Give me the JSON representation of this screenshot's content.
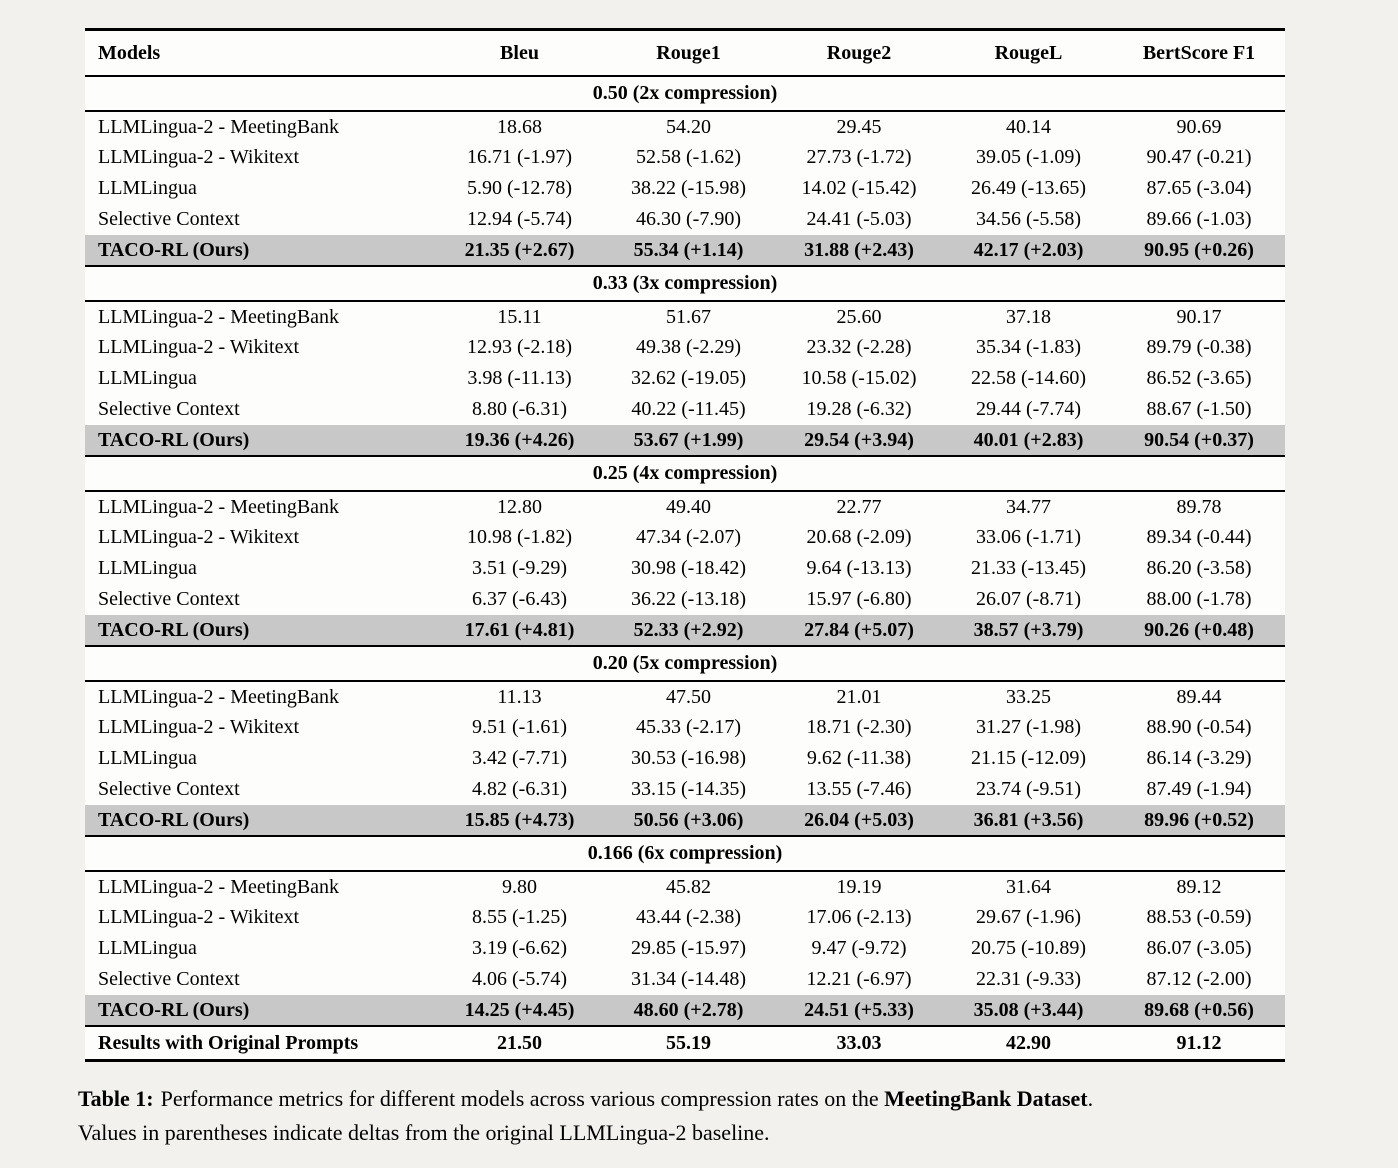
{
  "table": {
    "columns": [
      "Models",
      "Bleu",
      "Rouge1",
      "Rouge2",
      "RougeL",
      "BertScore F1"
    ],
    "sections": [
      {
        "title": "0.50 (2x compression)",
        "rows": [
          {
            "model": "LLMLingua-2 - MeetingBank",
            "values": [
              "18.68",
              "54.20",
              "29.45",
              "40.14",
              "90.69"
            ],
            "highlight": false
          },
          {
            "model": "LLMLingua-2 - Wikitext",
            "values": [
              "16.71 (-1.97)",
              "52.58 (-1.62)",
              "27.73 (-1.72)",
              "39.05 (-1.09)",
              "90.47 (-0.21)"
            ],
            "highlight": false
          },
          {
            "model": "LLMLingua",
            "values": [
              "5.90 (-12.78)",
              "38.22 (-15.98)",
              "14.02 (-15.42)",
              "26.49 (-13.65)",
              "87.65 (-3.04)"
            ],
            "highlight": false
          },
          {
            "model": "Selective Context",
            "values": [
              "12.94 (-5.74)",
              "46.30 (-7.90)",
              "24.41 (-5.03)",
              "34.56 (-5.58)",
              "89.66 (-1.03)"
            ],
            "highlight": false
          },
          {
            "model": "TACO-RL (Ours)",
            "values": [
              "21.35 (+2.67)",
              "55.34 (+1.14)",
              "31.88 (+2.43)",
              "42.17 (+2.03)",
              "90.95 (+0.26)"
            ],
            "highlight": true
          }
        ]
      },
      {
        "title": "0.33 (3x compression)",
        "rows": [
          {
            "model": "LLMLingua-2 - MeetingBank",
            "values": [
              "15.11",
              "51.67",
              "25.60",
              "37.18",
              "90.17"
            ],
            "highlight": false
          },
          {
            "model": "LLMLingua-2 - Wikitext",
            "values": [
              "12.93 (-2.18)",
              "49.38 (-2.29)",
              "23.32 (-2.28)",
              "35.34 (-1.83)",
              "89.79 (-0.38)"
            ],
            "highlight": false
          },
          {
            "model": "LLMLingua",
            "values": [
              "3.98 (-11.13)",
              "32.62 (-19.05)",
              "10.58 (-15.02)",
              "22.58 (-14.60)",
              "86.52 (-3.65)"
            ],
            "highlight": false
          },
          {
            "model": "Selective Context",
            "values": [
              "8.80 (-6.31)",
              "40.22 (-11.45)",
              "19.28 (-6.32)",
              "29.44 (-7.74)",
              "88.67 (-1.50)"
            ],
            "highlight": false
          },
          {
            "model": "TACO-RL (Ours)",
            "values": [
              "19.36 (+4.26)",
              "53.67 (+1.99)",
              "29.54 (+3.94)",
              "40.01 (+2.83)",
              "90.54 (+0.37)"
            ],
            "highlight": true
          }
        ]
      },
      {
        "title": "0.25 (4x compression)",
        "rows": [
          {
            "model": "LLMLingua-2 - MeetingBank",
            "values": [
              "12.80",
              "49.40",
              "22.77",
              "34.77",
              "89.78"
            ],
            "highlight": false
          },
          {
            "model": "LLMLingua-2 - Wikitext",
            "values": [
              "10.98 (-1.82)",
              "47.34 (-2.07)",
              "20.68 (-2.09)",
              "33.06 (-1.71)",
              "89.34 (-0.44)"
            ],
            "highlight": false
          },
          {
            "model": "LLMLingua",
            "values": [
              "3.51 (-9.29)",
              "30.98 (-18.42)",
              "9.64 (-13.13)",
              "21.33 (-13.45)",
              "86.20 (-3.58)"
            ],
            "highlight": false
          },
          {
            "model": "Selective Context",
            "values": [
              "6.37 (-6.43)",
              "36.22 (-13.18)",
              "15.97 (-6.80)",
              "26.07 (-8.71)",
              "88.00 (-1.78)"
            ],
            "highlight": false
          },
          {
            "model": "TACO-RL (Ours)",
            "values": [
              "17.61 (+4.81)",
              "52.33 (+2.92)",
              "27.84 (+5.07)",
              "38.57 (+3.79)",
              "90.26 (+0.48)"
            ],
            "highlight": true
          }
        ]
      },
      {
        "title": "0.20 (5x compression)",
        "rows": [
          {
            "model": "LLMLingua-2 - MeetingBank",
            "values": [
              "11.13",
              "47.50",
              "21.01",
              "33.25",
              "89.44"
            ],
            "highlight": false
          },
          {
            "model": "LLMLingua-2 - Wikitext",
            "values": [
              "9.51 (-1.61)",
              "45.33 (-2.17)",
              "18.71 (-2.30)",
              "31.27 (-1.98)",
              "88.90 (-0.54)"
            ],
            "highlight": false
          },
          {
            "model": "LLMLingua",
            "values": [
              "3.42 (-7.71)",
              "30.53 (-16.98)",
              "9.62 (-11.38)",
              "21.15 (-12.09)",
              "86.14 (-3.29)"
            ],
            "highlight": false
          },
          {
            "model": "Selective Context",
            "values": [
              "4.82 (-6.31)",
              "33.15 (-14.35)",
              "13.55 (-7.46)",
              "23.74 (-9.51)",
              "87.49 (-1.94)"
            ],
            "highlight": false
          },
          {
            "model": "TACO-RL (Ours)",
            "values": [
              "15.85 (+4.73)",
              "50.56 (+3.06)",
              "26.04 (+5.03)",
              "36.81 (+3.56)",
              "89.96 (+0.52)"
            ],
            "highlight": true
          }
        ]
      },
      {
        "title": "0.166 (6x compression)",
        "rows": [
          {
            "model": "LLMLingua-2 - MeetingBank",
            "values": [
              "9.80",
              "45.82",
              "19.19",
              "31.64",
              "89.12"
            ],
            "highlight": false
          },
          {
            "model": "LLMLingua-2 - Wikitext",
            "values": [
              "8.55 (-1.25)",
              "43.44 (-2.38)",
              "17.06 (-2.13)",
              "29.67 (-1.96)",
              "88.53 (-0.59)"
            ],
            "highlight": false
          },
          {
            "model": "LLMLingua",
            "values": [
              "3.19 (-6.62)",
              "29.85 (-15.97)",
              "9.47 (-9.72)",
              "20.75 (-10.89)",
              "86.07 (-3.05)"
            ],
            "highlight": false
          },
          {
            "model": "Selective Context",
            "values": [
              "4.06 (-5.74)",
              "31.34 (-14.48)",
              "12.21 (-6.97)",
              "22.31 (-9.33)",
              "87.12 (-2.00)"
            ],
            "highlight": false
          },
          {
            "model": "TACO-RL (Ours)",
            "values": [
              "14.25 (+4.45)",
              "48.60 (+2.78)",
              "24.51 (+5.33)",
              "35.08 (+3.44)",
              "89.68 (+0.56)"
            ],
            "highlight": true
          }
        ]
      }
    ],
    "footer_row": {
      "model": "Results with Original Prompts",
      "values": [
        "21.50",
        "55.19",
        "33.03",
        "42.90",
        "91.12"
      ]
    }
  },
  "caption": {
    "label": "Table 1:",
    "line1_text": "Performance metrics for different models across various compression rates on the ",
    "line1_bold": "MeetingBank Dataset",
    "line1_end": ".",
    "line2": "Values in parentheses indicate deltas from the original LLMLingua-2 baseline."
  },
  "colors": {
    "highlight_row": "#c8c8c8",
    "page_background": "#f2f1ee",
    "table_background": "#fdfdfb",
    "rule": "#000000"
  }
}
